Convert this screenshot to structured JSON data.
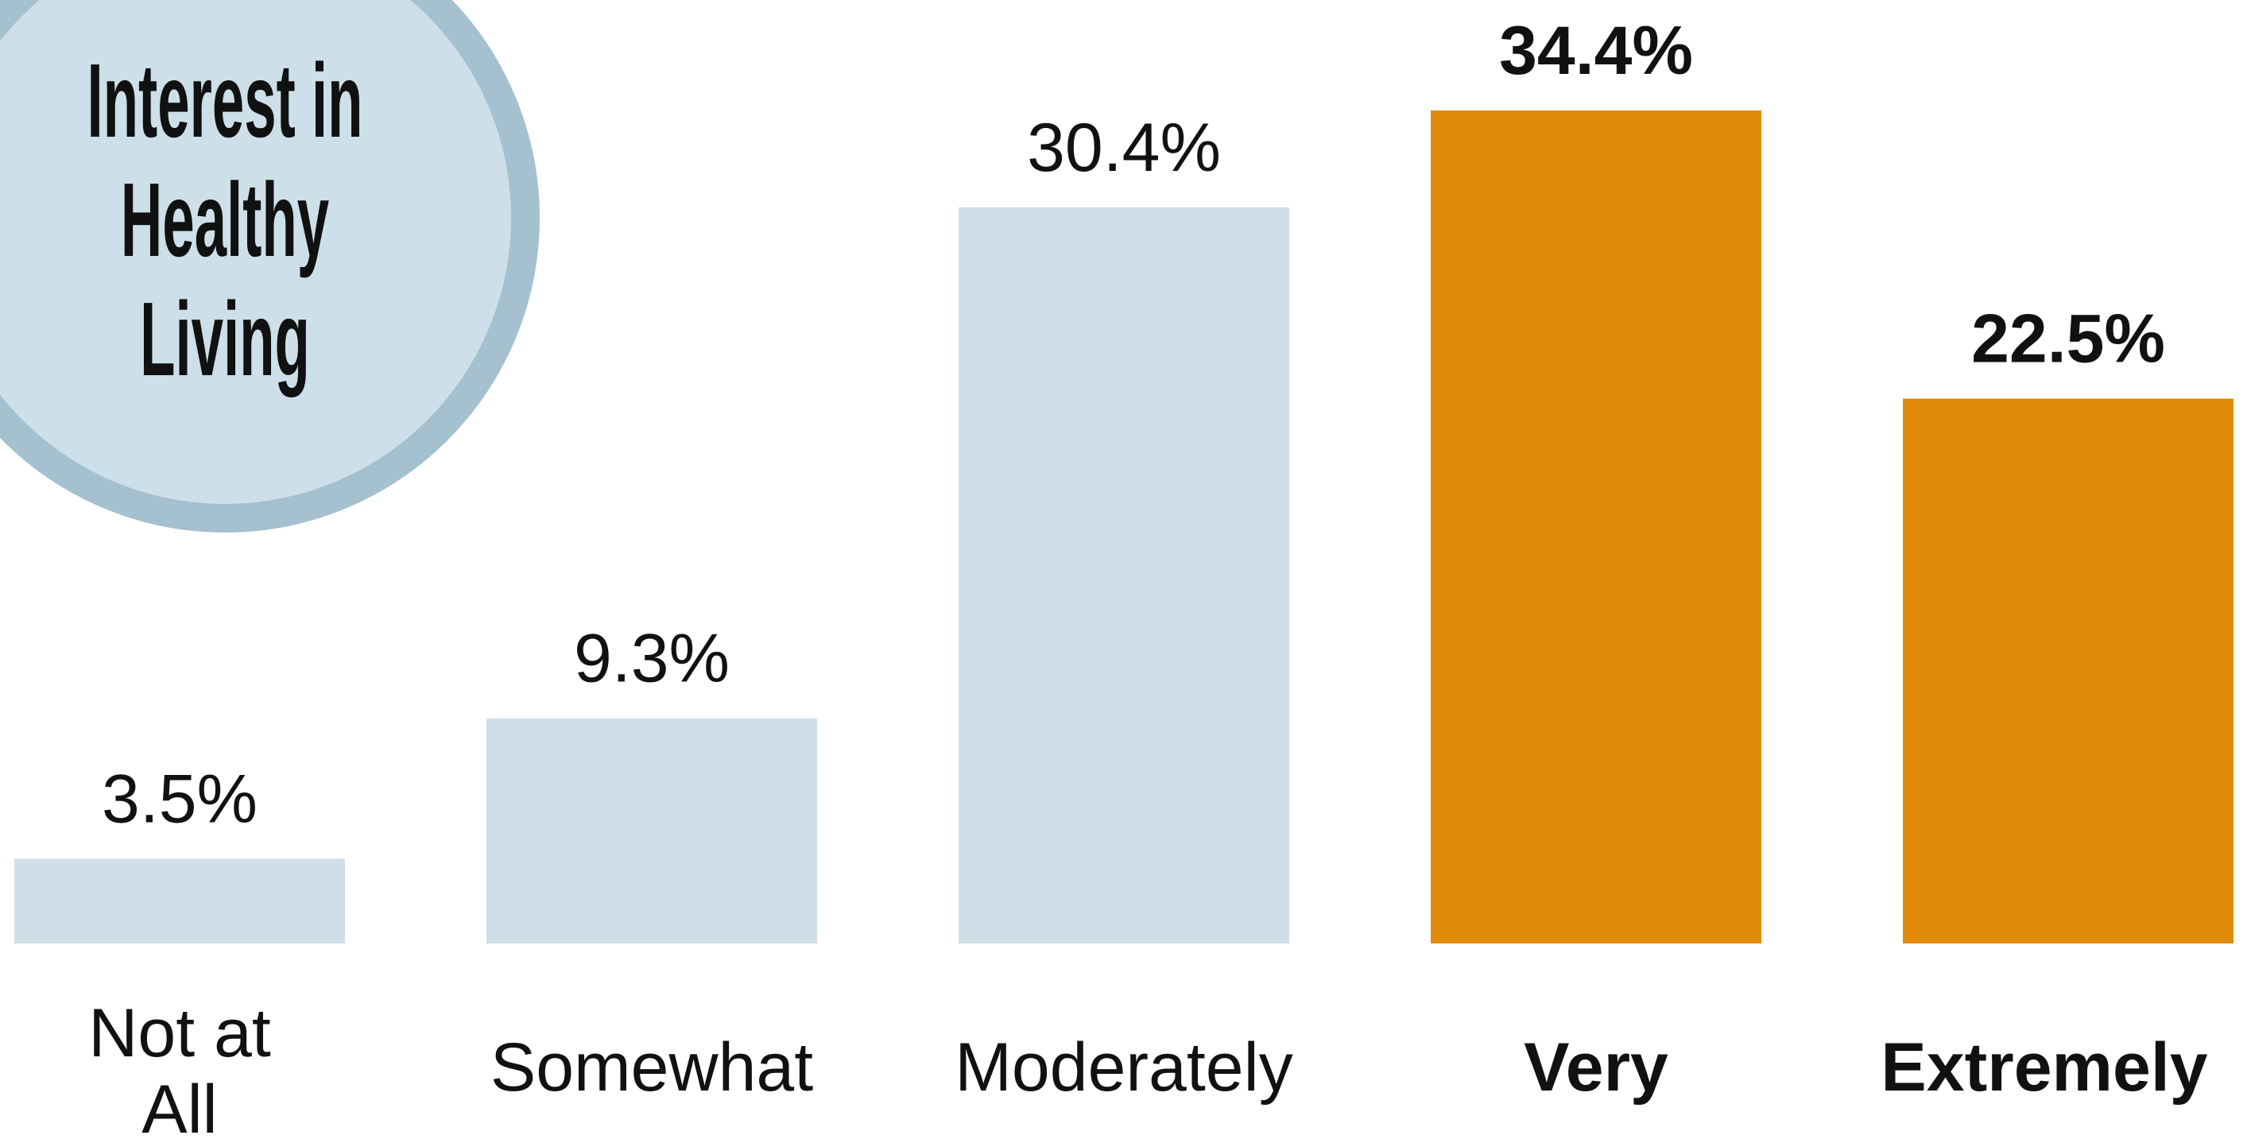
{
  "chart_data": {
    "type": "bar",
    "title": "Interest in Healthy Living",
    "categories": [
      "Not at All",
      "Somewhat",
      "Moderately",
      "Very",
      "Extremely"
    ],
    "values": [
      3.5,
      9.3,
      30.4,
      34.4,
      22.5
    ],
    "value_labels": [
      "3.5%",
      "9.3%",
      "30.4%",
      "34.4%",
      "22.5%"
    ],
    "colors": [
      "#cfdfe7",
      "#cfdfe7",
      "#cfdfe7",
      "#e08a0a",
      "#e08a0a"
    ],
    "bold": [
      false,
      false,
      false,
      true,
      true
    ],
    "ylim": [
      0,
      34.4
    ]
  }
}
